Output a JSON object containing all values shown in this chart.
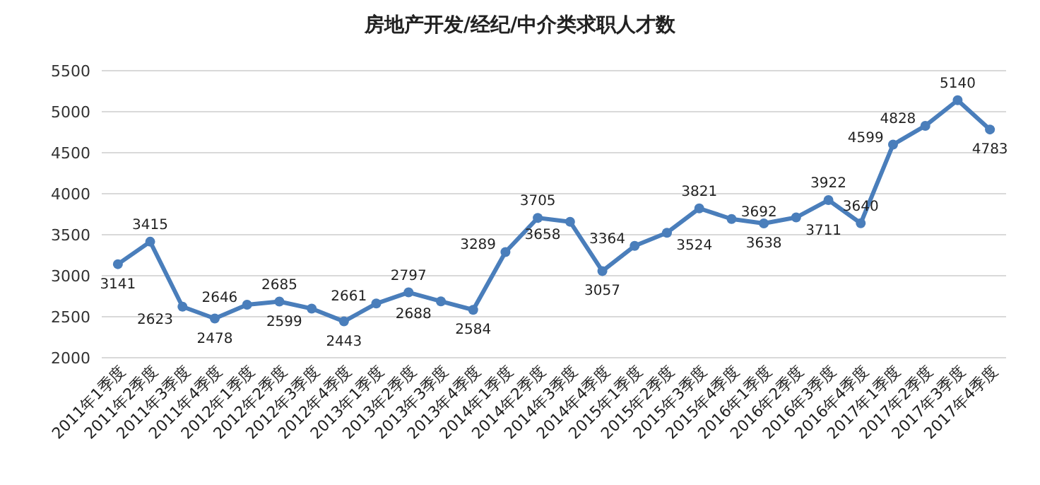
{
  "chart_data": {
    "type": "line",
    "title": "房地产开发/经纪/中介类求职人才数",
    "categories": [
      "2011年1季度",
      "2011年2季度",
      "2011年3季度",
      "2011年4季度",
      "2012年1季度",
      "2012年2季度",
      "2012年3季度",
      "2012年4季度",
      "2013年1季度",
      "2013年2季度",
      "2013年3季度",
      "2013年4季度",
      "2014年1季度",
      "2014年2季度",
      "2014年3季度",
      "2014年4季度",
      "2015年1季度",
      "2015年2季度",
      "2015年3季度",
      "2015年4季度",
      "2016年1季度",
      "2016年2季度",
      "2016年3季度",
      "2016年4季度",
      "2017年1季度",
      "2017年2季度",
      "2017年3季度",
      "2017年4季度"
    ],
    "values": [
      3141,
      3415,
      2623,
      2478,
      2646,
      2685,
      2599,
      2443,
      2661,
      2797,
      2688,
      2584,
      3289,
      3705,
      3658,
      3057,
      3364,
      3524,
      3821,
      3692,
      3638,
      3711,
      3922,
      3640,
      4599,
      4828,
      5140,
      4783
    ],
    "color": "#4a7ebb",
    "ylim": [
      2000,
      5500
    ],
    "yticks": [
      2000,
      2500,
      3000,
      3500,
      4000,
      4500,
      5000,
      5500
    ],
    "grid": "y",
    "marker": "circle",
    "line_style": "solid",
    "data_labels": true
  }
}
